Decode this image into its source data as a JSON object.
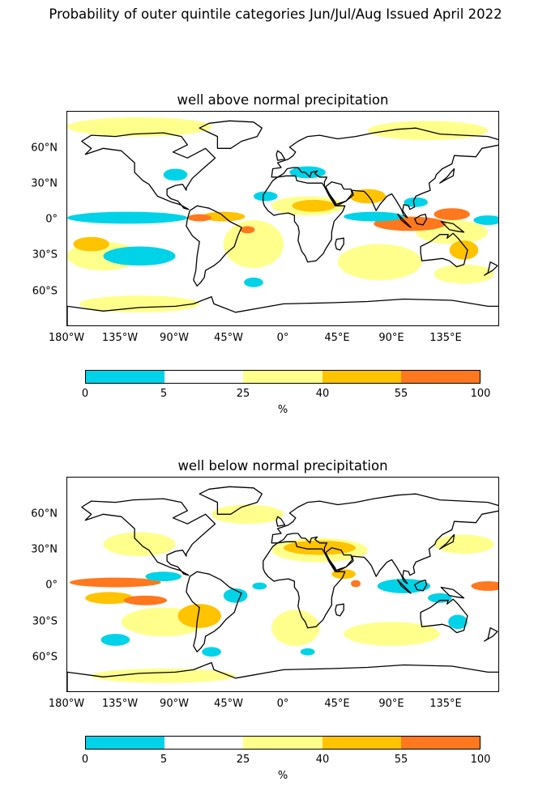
{
  "title": "Probability of outer quintile categories Jun/Jul/Aug Issued April 2022",
  "colors": {
    "c0_5": "#00d3e8",
    "c5_25": "#ffffff",
    "c25_40": "#ffff8c",
    "c40_55": "#ffc300",
    "c55_100": "#ff781e",
    "coast": "#000000"
  },
  "lat_labels": [
    "60°N",
    "30°N",
    "0°",
    "30°S",
    "60°S"
  ],
  "lon_labels": [
    "180°W",
    "135°W",
    "90°W",
    "45°W",
    "0°",
    "45°E",
    "90°E",
    "135°E"
  ],
  "colorbar": {
    "ticks": [
      "0",
      "5",
      "25",
      "40",
      "55",
      "100"
    ],
    "unit": "%"
  },
  "panels": [
    {
      "title": "well above normal precipitation",
      "variable": "well_above",
      "regions": [
        {
          "category": "55-100",
          "area": "equatorial Indian Ocean / Maritime Continent"
        },
        {
          "category": "55-100",
          "area": "tropical Atlantic ITCZ / northern South America"
        },
        {
          "category": "40-55",
          "area": "Sahel / Arabian Sea / southern Asia"
        },
        {
          "category": "0-5",
          "area": "equatorial eastern Pacific"
        },
        {
          "category": "0-5",
          "area": "subtropical South Pacific"
        },
        {
          "category": "0-5",
          "area": "equatorial central Indian Ocean"
        }
      ]
    },
    {
      "title": "well below normal precipitation",
      "variable": "well_below",
      "regions": [
        {
          "category": "55-100",
          "area": "equatorial eastern Pacific"
        },
        {
          "category": "55-100",
          "area": "western equatorial Pacific"
        },
        {
          "category": "40-55",
          "area": "Sahara / Middle East / Mediterranean"
        },
        {
          "category": "40-55",
          "area": "southeast Pacific / South America"
        },
        {
          "category": "0-5",
          "area": "Maritime Continent / Indian Ocean"
        },
        {
          "category": "0-5",
          "area": "tropical Atlantic / Central America"
        }
      ]
    }
  ]
}
